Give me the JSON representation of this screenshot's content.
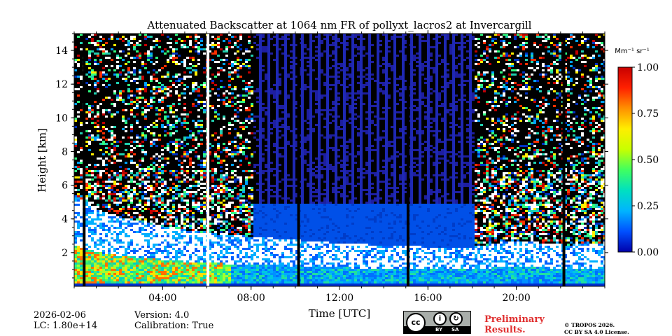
{
  "chart_data": {
    "type": "heatmap",
    "title": "Attenuated Backscatter at 1064 nm FR of pollyxt_lacros2 at Invercargill",
    "xlabel": "Time [UTC]",
    "ylabel": "Height [km]",
    "xlim_hours": [
      0,
      24
    ],
    "ylim_km": [
      0,
      15
    ],
    "x_tick_hours": [
      4,
      8,
      12,
      16,
      20
    ],
    "x_tick_labels": [
      "04:00",
      "08:00",
      "12:00",
      "16:00",
      "20:00"
    ],
    "y_ticks": [
      2,
      4,
      6,
      8,
      10,
      12,
      14
    ],
    "y_tick_labels": [
      "2",
      "4",
      "6",
      "8",
      "10",
      "12",
      "14"
    ],
    "colorbar": {
      "label": "Mm⁻¹ sr⁻¹",
      "range": [
        0.0,
        1.0
      ],
      "ticks": [
        0.0,
        0.25,
        0.5,
        0.75,
        1.0
      ],
      "tick_labels": [
        "0.00",
        "0.25",
        "0.50",
        "0.75",
        "1.00"
      ],
      "colormap": [
        "#0000aa",
        "#0050ff",
        "#00b4ff",
        "#00e0c0",
        "#40ff60",
        "#c8ff00",
        "#ffee00",
        "#ff9000",
        "#ff2000",
        "#c80000"
      ]
    },
    "features": {
      "blank_time_hours": [
        0.45,
        6.05,
        10.15,
        15.1,
        22.15
      ],
      "blocked_window_hours": [
        8.0,
        18.0
      ],
      "blocked_window_top_km": 5.0,
      "cloud_top_profile_km": [
        [
          0,
          5.5
        ],
        [
          1,
          4.6
        ],
        [
          2,
          4.2
        ],
        [
          3,
          3.9
        ],
        [
          4,
          3.6
        ],
        [
          5,
          3.4
        ],
        [
          6,
          3.2
        ],
        [
          7,
          3.1
        ],
        [
          8,
          3.0
        ],
        [
          9,
          2.9
        ],
        [
          10,
          2.8
        ],
        [
          12,
          2.6
        ],
        [
          14,
          2.5
        ],
        [
          16,
          2.4
        ],
        [
          18,
          2.4
        ],
        [
          20,
          2.8
        ],
        [
          22,
          2.5
        ],
        [
          24,
          2.6
        ]
      ]
    }
  },
  "footer": {
    "date": "2026-02-06",
    "lc": "LC: 1.80e+14",
    "version": "Version: 4.0",
    "calibration": "Calibration: True",
    "preliminary_line1": "Preliminary",
    "preliminary_line2": "Results.",
    "copyright_line1": "© TROPOS 2026.",
    "copyright_line2": "CC BY SA 4.0 License.",
    "cc_by": "BY",
    "cc_sa": "SA"
  }
}
